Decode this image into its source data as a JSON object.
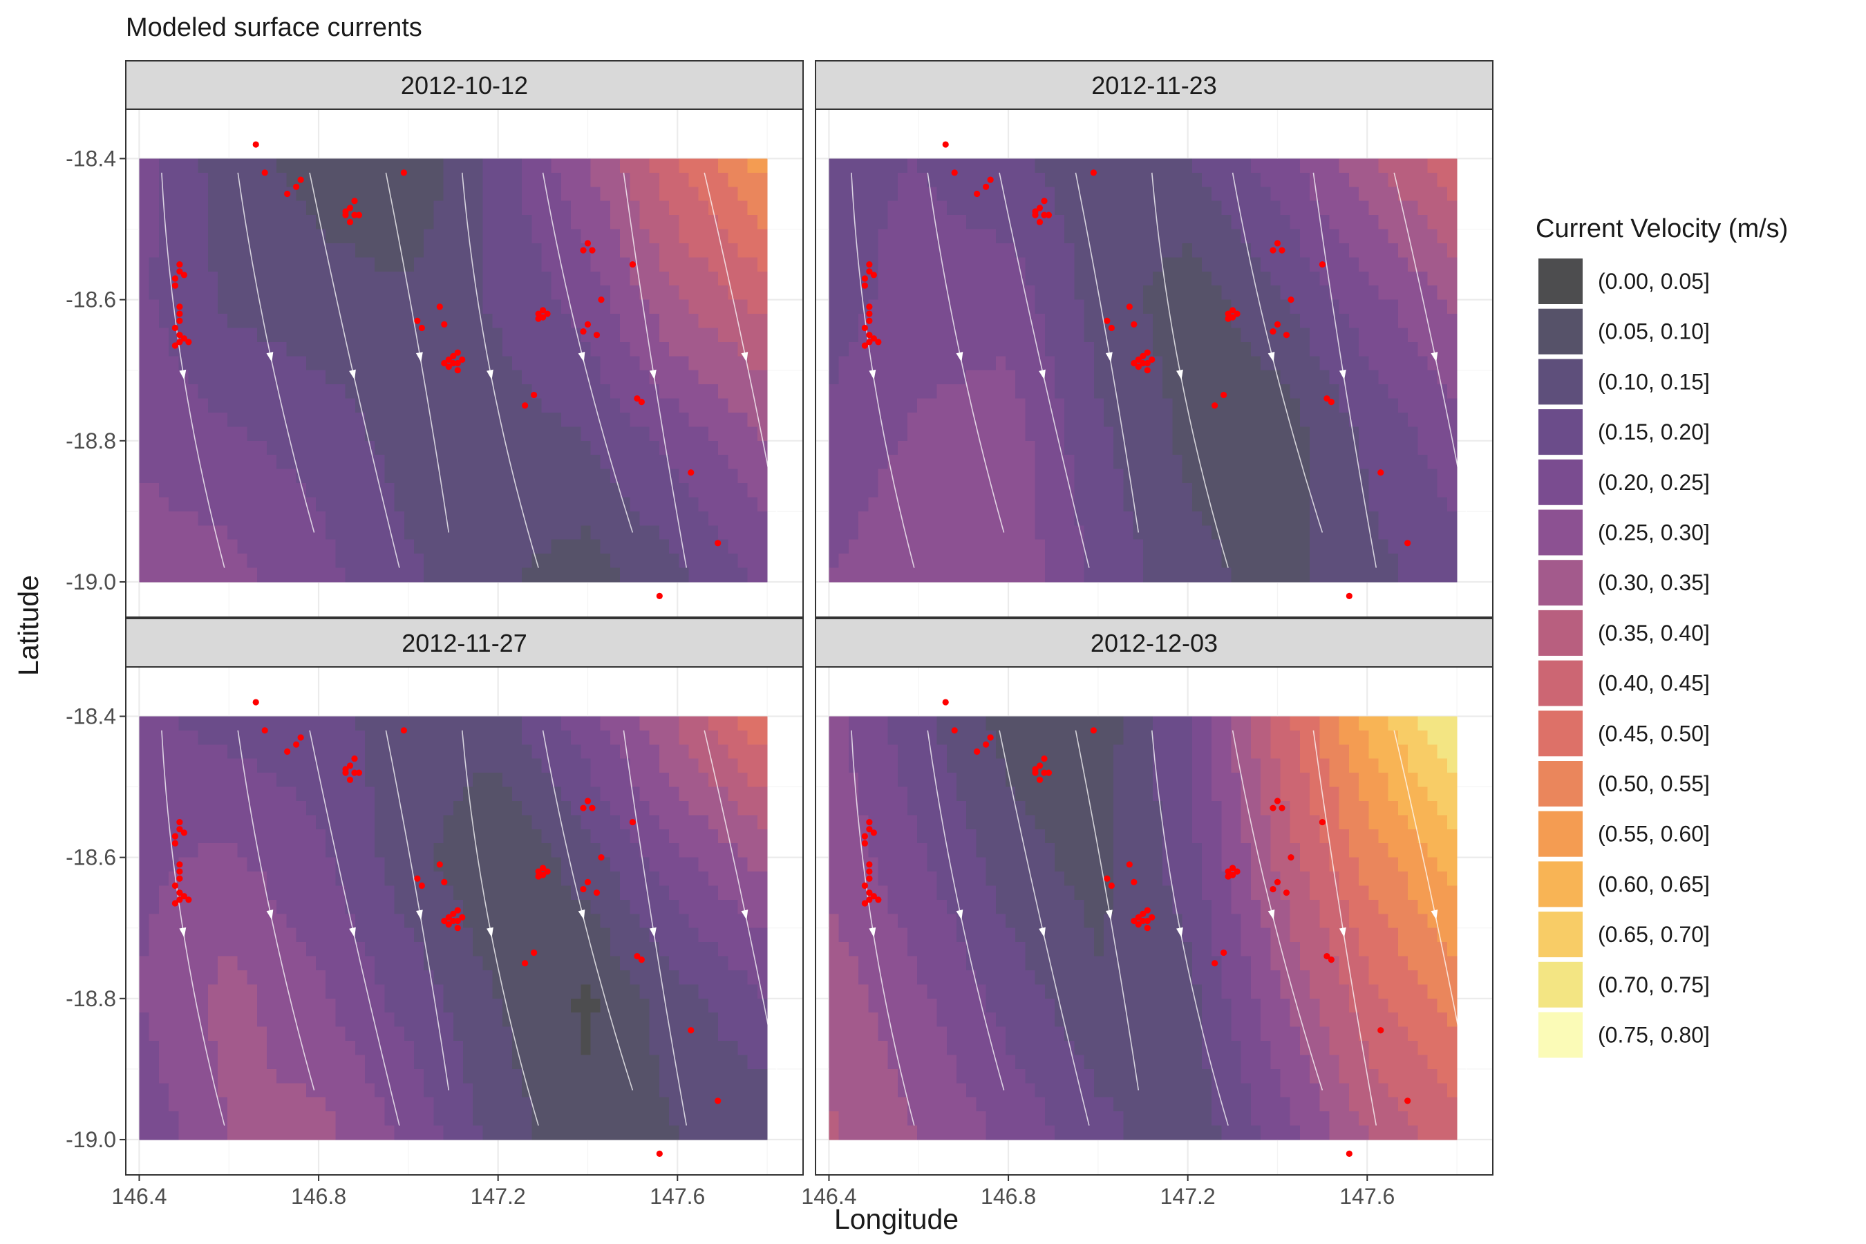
{
  "chart_data": {
    "type": "heatmap",
    "title": "Modeled surface currents",
    "xlabel": "Longitude",
    "ylabel": "Latitude",
    "x_ticks": [
      146.4,
      146.8,
      147.2,
      147.6
    ],
    "x_tick_labels": [
      "146.4",
      "146.8",
      "147.2",
      "147.6"
    ],
    "y_ticks": [
      -18.4,
      -18.6,
      -18.8,
      -19.0
    ],
    "y_tick_labels": [
      "-18.4",
      "-18.6",
      "-18.8",
      "-19.0"
    ],
    "xlim": [
      146.37,
      147.88
    ],
    "ylim": [
      -19.05,
      -18.33
    ],
    "grid": true,
    "legend": {
      "title": "Current Velocity (m/s)",
      "position": "right",
      "items": [
        {
          "label": "(0.00, 0.05]",
          "color": "#4d4d4f"
        },
        {
          "label": "(0.05, 0.10]",
          "color": "#565269"
        },
        {
          "label": "(0.10, 0.15]",
          "color": "#5e4f7b"
        },
        {
          "label": "(0.15, 0.20]",
          "color": "#6b4c8a"
        },
        {
          "label": "(0.20, 0.25]",
          "color": "#7a4c90"
        },
        {
          "label": "(0.25, 0.30]",
          "color": "#8c5192"
        },
        {
          "label": "(0.30, 0.35]",
          "color": "#a35a8c"
        },
        {
          "label": "(0.35, 0.40]",
          "color": "#b85f7f"
        },
        {
          "label": "(0.40, 0.45]",
          "color": "#cc6673"
        },
        {
          "label": "(0.45, 0.50]",
          "color": "#dd7168"
        },
        {
          "label": "(0.50, 0.55]",
          "color": "#ea865c"
        },
        {
          "label": "(0.55, 0.60]",
          "color": "#f49c52"
        },
        {
          "label": "(0.60, 0.65]",
          "color": "#f8b455"
        },
        {
          "label": "(0.65, 0.70]",
          "color": "#f8cc66"
        },
        {
          "label": "(0.70, 0.75]",
          "color": "#f3e583"
        },
        {
          "label": "(0.75, 0.80]",
          "color": "#fbfbb7"
        }
      ]
    },
    "sites": [
      [
        146.66,
        -18.38
      ],
      [
        146.68,
        -18.42
      ],
      [
        146.73,
        -18.45
      ],
      [
        146.76,
        -18.43
      ],
      [
        146.75,
        -18.44
      ],
      [
        146.87,
        -18.47
      ],
      [
        146.88,
        -18.48
      ],
      [
        146.87,
        -18.49
      ],
      [
        146.86,
        -18.48
      ],
      [
        146.89,
        -18.48
      ],
      [
        146.88,
        -18.46
      ],
      [
        146.86,
        -18.475
      ],
      [
        146.99,
        -18.42
      ],
      [
        146.49,
        -18.55
      ],
      [
        146.49,
        -18.56
      ],
      [
        146.48,
        -18.57
      ],
      [
        146.5,
        -18.565
      ],
      [
        146.48,
        -18.58
      ],
      [
        146.49,
        -18.61
      ],
      [
        146.49,
        -18.62
      ],
      [
        146.48,
        -18.64
      ],
      [
        146.49,
        -18.65
      ],
      [
        146.5,
        -18.655
      ],
      [
        146.49,
        -18.66
      ],
      [
        146.48,
        -18.665
      ],
      [
        146.51,
        -18.66
      ],
      [
        146.49,
        -18.63
      ],
      [
        147.02,
        -18.63
      ],
      [
        147.03,
        -18.64
      ],
      [
        147.07,
        -18.61
      ],
      [
        147.08,
        -18.635
      ],
      [
        147.08,
        -18.69
      ],
      [
        147.09,
        -18.695
      ],
      [
        147.1,
        -18.68
      ],
      [
        147.11,
        -18.7
      ],
      [
        147.12,
        -18.685
      ],
      [
        147.1,
        -18.69
      ],
      [
        147.09,
        -18.685
      ],
      [
        147.11,
        -18.69
      ],
      [
        147.11,
        -18.675
      ],
      [
        147.29,
        -18.62
      ],
      [
        147.3,
        -18.625
      ],
      [
        147.31,
        -18.62
      ],
      [
        147.3,
        -18.615
      ],
      [
        147.29,
        -18.627
      ],
      [
        147.26,
        -18.75
      ],
      [
        147.28,
        -18.735
      ],
      [
        147.39,
        -18.53
      ],
      [
        147.4,
        -18.52
      ],
      [
        147.41,
        -18.53
      ],
      [
        147.4,
        -18.635
      ],
      [
        147.39,
        -18.645
      ],
      [
        147.42,
        -18.65
      ],
      [
        147.43,
        -18.6
      ],
      [
        147.5,
        -18.55
      ],
      [
        147.51,
        -18.74
      ],
      [
        147.52,
        -18.745
      ],
      [
        147.63,
        -18.845
      ],
      [
        147.69,
        -18.945
      ],
      [
        147.56,
        -19.02
      ]
    ],
    "panels": [
      {
        "date": "2012-10-12",
        "grid_x": [
          146.4,
          146.6,
          146.8,
          147.0,
          147.2,
          147.4,
          147.6,
          147.8
        ],
        "grid_y": [
          -18.4,
          -18.6,
          -18.8,
          -19.0
        ],
        "speed": [
          [
            0.22,
            0.12,
            0.08,
            0.05,
            0.17,
            0.3,
            0.45,
            0.58
          ],
          [
            0.21,
            0.14,
            0.12,
            0.11,
            0.16,
            0.22,
            0.35,
            0.42
          ],
          [
            0.24,
            0.21,
            0.18,
            0.13,
            0.12,
            0.15,
            0.22,
            0.3
          ],
          [
            0.28,
            0.27,
            0.22,
            0.16,
            0.11,
            0.07,
            0.14,
            0.21
          ]
        ]
      },
      {
        "date": "2012-11-23",
        "grid_x": [
          146.4,
          146.6,
          146.8,
          147.0,
          147.2,
          147.4,
          147.6,
          147.8
        ],
        "grid_y": [
          -18.4,
          -18.6,
          -18.8,
          -19.0
        ],
        "speed": [
          [
            0.19,
            0.2,
            0.16,
            0.12,
            0.15,
            0.23,
            0.34,
            0.44
          ],
          [
            0.18,
            0.22,
            0.23,
            0.13,
            0.07,
            0.14,
            0.23,
            0.31
          ],
          [
            0.21,
            0.26,
            0.28,
            0.16,
            0.09,
            0.06,
            0.16,
            0.23
          ],
          [
            0.25,
            0.3,
            0.29,
            0.19,
            0.12,
            0.08,
            0.13,
            0.18
          ]
        ]
      },
      {
        "date": "2012-11-27",
        "grid_x": [
          146.4,
          146.6,
          146.8,
          147.0,
          147.2,
          147.4,
          147.6,
          147.8
        ],
        "grid_y": [
          -18.4,
          -18.6,
          -18.8,
          -19.0
        ],
        "speed": [
          [
            0.21,
            0.18,
            0.17,
            0.12,
            0.13,
            0.24,
            0.36,
            0.5
          ],
          [
            0.24,
            0.26,
            0.21,
            0.12,
            0.05,
            0.13,
            0.24,
            0.32
          ],
          [
            0.25,
            0.32,
            0.26,
            0.18,
            0.1,
            0.04,
            0.13,
            0.2
          ],
          [
            0.21,
            0.3,
            0.32,
            0.24,
            0.13,
            0.06,
            0.1,
            0.11
          ]
        ]
      },
      {
        "date": "2012-12-03",
        "grid_x": [
          146.4,
          146.6,
          146.8,
          147.0,
          147.2,
          147.4,
          147.6,
          147.8
        ],
        "grid_y": [
          -18.4,
          -18.6,
          -18.8,
          -19.0
        ],
        "speed": [
          [
            0.27,
            0.16,
            0.08,
            0.07,
            0.2,
            0.42,
            0.62,
            0.76
          ],
          [
            0.29,
            0.21,
            0.12,
            0.08,
            0.18,
            0.36,
            0.52,
            0.63
          ],
          [
            0.33,
            0.26,
            0.18,
            0.11,
            0.13,
            0.29,
            0.43,
            0.52
          ],
          [
            0.36,
            0.3,
            0.24,
            0.17,
            0.11,
            0.22,
            0.35,
            0.43
          ]
        ]
      }
    ]
  }
}
